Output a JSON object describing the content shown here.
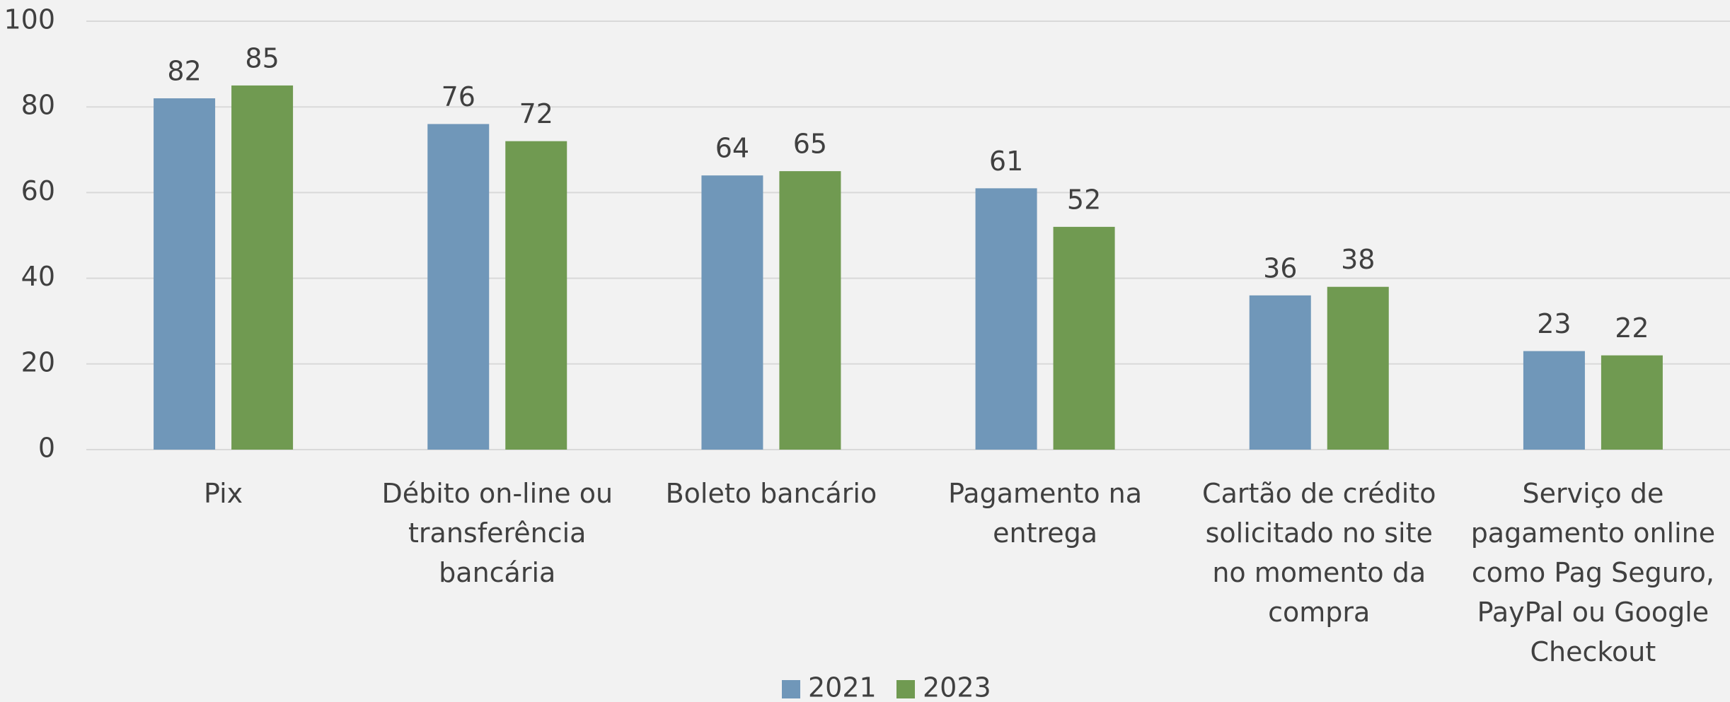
{
  "chart_data": {
    "type": "bar",
    "categories": [
      "Pix",
      "Débito on-line ou transferência bancária",
      "Boleto bancário",
      "Pagamento na entrega",
      "Cartão de crédito solicitado no site no momento da compra",
      "Serviço de pagamento online como Pag Seguro, PayPal ou Google Checkout"
    ],
    "series": [
      {
        "name": "2021",
        "color": "#7097b9",
        "values": [
          82,
          76,
          64,
          61,
          36,
          23
        ]
      },
      {
        "name": "2023",
        "color": "#709a51",
        "values": [
          85,
          72,
          65,
          52,
          38,
          22
        ]
      }
    ],
    "ylim": [
      0,
      100
    ],
    "yticks": [
      0,
      20,
      40,
      60,
      80,
      100
    ],
    "grid": true,
    "legend": "bottom"
  }
}
